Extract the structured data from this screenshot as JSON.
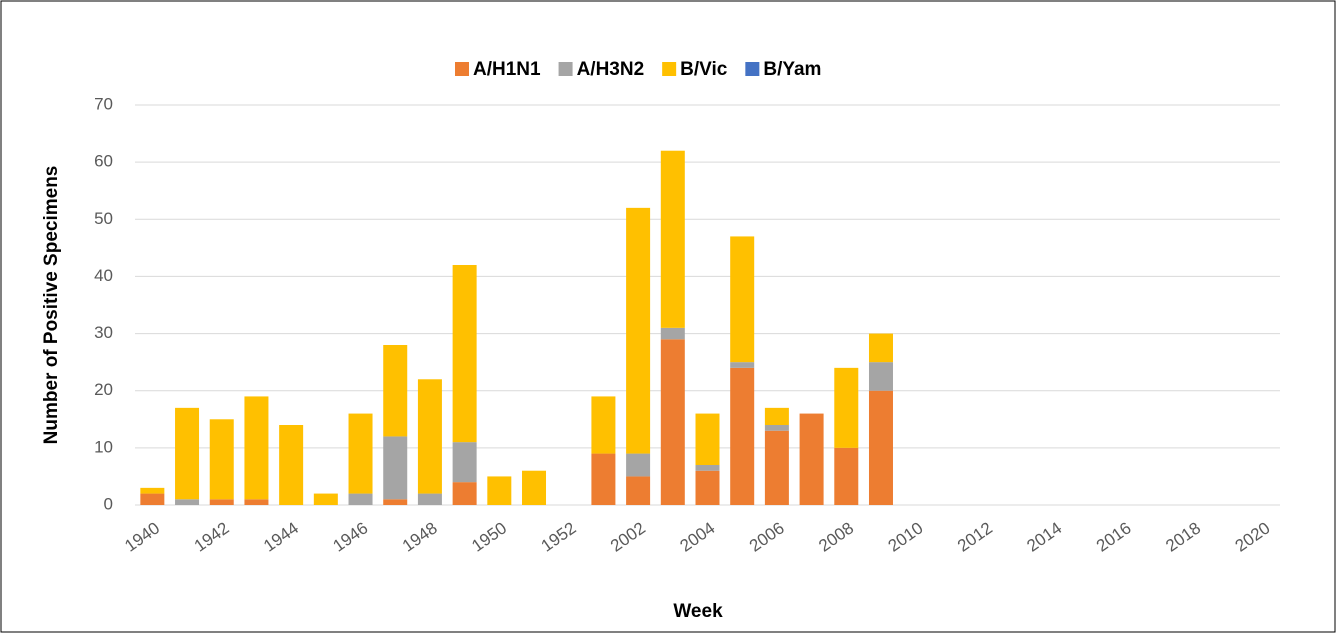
{
  "chart_data": {
    "type": "stacked_bar",
    "xlabel": "Week",
    "ylabel": "Number of Positive Specimens",
    "categories": [
      "1940",
      null,
      "1942",
      null,
      "1944",
      null,
      "1946",
      null,
      "1948",
      null,
      "1950",
      null,
      "1952",
      null,
      "2002",
      null,
      "2004",
      null,
      "2006",
      null,
      "2008",
      null,
      "2010",
      null,
      "2012",
      null,
      "2014",
      null,
      "2016",
      null,
      "2018",
      null,
      "2020"
    ],
    "series": [
      {
        "name": "A/H1N1",
        "color": "#ed7d31",
        "values": [
          2,
          0,
          1,
          1,
          0,
          0,
          0,
          1,
          0,
          4,
          0,
          0,
          0,
          9,
          5,
          29,
          6,
          24,
          13,
          16,
          10,
          20,
          0,
          0,
          0,
          0,
          0,
          0,
          0,
          0,
          0,
          0,
          0
        ]
      },
      {
        "name": "A/H3N2",
        "color": "#a5a5a5",
        "values": [
          0,
          1,
          0,
          0,
          0,
          0,
          2,
          11,
          2,
          7,
          0,
          0,
          0,
          0,
          4,
          2,
          1,
          1,
          1,
          0,
          0,
          5,
          0,
          0,
          0,
          0,
          0,
          0,
          0,
          0,
          0,
          0,
          0
        ]
      },
      {
        "name": "B/Vic",
        "color": "#ffc000",
        "values": [
          1,
          16,
          14,
          18,
          14,
          2,
          14,
          16,
          20,
          31,
          5,
          6,
          0,
          10,
          43,
          31,
          9,
          22,
          3,
          0,
          14,
          5,
          0,
          0,
          0,
          0,
          0,
          0,
          0,
          0,
          0,
          0,
          0
        ]
      },
      {
        "name": "B/Yam",
        "color": "#4472c4",
        "values": [
          0,
          0,
          0,
          0,
          0,
          0,
          0,
          0,
          0,
          0,
          0,
          0,
          0,
          0,
          0,
          0,
          0,
          0,
          0,
          0,
          0,
          0,
          0,
          0,
          0,
          0,
          0,
          0,
          0,
          0,
          0,
          0,
          0
        ]
      }
    ],
    "ylim": [
      0,
      70
    ],
    "yticks": [
      0,
      10,
      20,
      30,
      40,
      50,
      60,
      70
    ],
    "grid": true,
    "legend": "top"
  }
}
